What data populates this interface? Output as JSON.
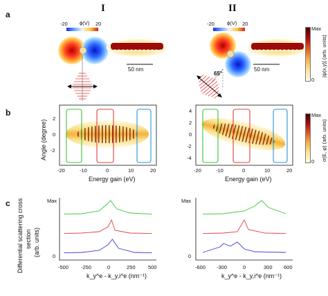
{
  "panels": {
    "a": "a",
    "b": "b",
    "c": "c"
  },
  "columns": {
    "left": "I",
    "right": "II"
  },
  "panel_a": {
    "phi_label": "ϕ(V)",
    "phi_min": "-20",
    "phi_max": "20",
    "scale_bar": "50 nm",
    "angle": "65°",
    "colorbar_max": "Max",
    "colorbar_min": "0",
    "colorbar_label": "|ψ(x,y)| (arb. units)"
  },
  "panel_b": {
    "ylabel": "Angle (degree)",
    "xlabel": "Energy gain (eV)",
    "colorbar_max": "Max",
    "colorbar_min": "0",
    "colorbar_label": "σ(E, φ) (arb. units)",
    "left_xticks": [
      "-20",
      "-10",
      "0",
      "10",
      "20"
    ],
    "left_yticks": [
      "2",
      "0",
      "-2"
    ],
    "right_xticks": [
      "-20",
      "-10",
      "0",
      "10",
      "20"
    ],
    "right_yticks": [
      "4",
      "2",
      "0",
      "-2",
      "-4"
    ]
  },
  "panel_c": {
    "ylabel_lines": [
      "Differential scattering cross",
      "section",
      "(arb. units)"
    ],
    "xlabel": "k_y^e - k_y,i^e (nm⁻¹)",
    "xlabel_main": "k",
    "left_xticks": [
      "-500",
      "-250",
      "0",
      "250",
      "500"
    ],
    "right_xticks": [
      "-600",
      "-300",
      "0",
      "300",
      "600"
    ],
    "ytick_max": "Max",
    "ytick_zero": "0"
  },
  "colors": {
    "green": "#39c43a",
    "red": "#e0403a",
    "blue": "#3b3bd0",
    "box_cyan": "#2a8fd0"
  },
  "chart_data": [
    {
      "type": "line",
      "title": "",
      "xlabel": "k_y^e - k_y,i^e (nm⁻¹)",
      "xlim": [
        -550,
        550
      ],
      "series": [
        {
          "values": [
            [
              -500,
              0.02
            ],
            [
              -300,
              0.05
            ],
            [
              -100,
              0.25
            ],
            [
              0,
              0.8
            ],
            [
              30,
              1.0
            ],
            [
              100,
              0.4
            ],
            [
              250,
              0.1
            ],
            [
              500,
              0.02
            ]
          ]
        },
        {
          "values": [
            [
              -500,
              0.02
            ],
            [
              -300,
              0.05
            ],
            [
              -100,
              0.15
            ],
            [
              0,
              0.5
            ],
            [
              40,
              1.0
            ],
            [
              80,
              0.25
            ],
            [
              250,
              0.05
            ],
            [
              500,
              0.02
            ]
          ]
        },
        {
          "values": [
            [
              -500,
              0.02
            ],
            [
              -300,
              0.05
            ],
            [
              -100,
              0.2
            ],
            [
              0,
              0.6
            ],
            [
              50,
              1.0
            ],
            [
              120,
              0.35
            ],
            [
              300,
              0.05
            ],
            [
              500,
              0.02
            ]
          ]
        }
      ]
    },
    {
      "type": "line",
      "title": "",
      "xlabel": "k_y^e - k_y,i^e (nm⁻¹)",
      "xlim": [
        -700,
        700
      ],
      "series": [
        {
          "values": [
            [
              -600,
              0.02
            ],
            [
              -300,
              0.05
            ],
            [
              0,
              0.25
            ],
            [
              150,
              0.6
            ],
            [
              250,
              1.0
            ],
            [
              350,
              0.5
            ],
            [
              600,
              0.05
            ]
          ]
        },
        {
          "values": [
            [
              -600,
              0.02
            ],
            [
              -300,
              0.05
            ],
            [
              -100,
              0.15
            ],
            [
              0,
              1.0
            ],
            [
              60,
              0.3
            ],
            [
              300,
              0.05
            ],
            [
              600,
              0.02
            ]
          ]
        },
        {
          "values": [
            [
              -600,
              0.05
            ],
            [
              -350,
              0.45
            ],
            [
              -300,
              0.7
            ],
            [
              -200,
              0.5
            ],
            [
              -100,
              0.8
            ],
            [
              0,
              0.3
            ],
            [
              150,
              0.1
            ],
            [
              600,
              0.05
            ]
          ]
        }
      ]
    }
  ]
}
